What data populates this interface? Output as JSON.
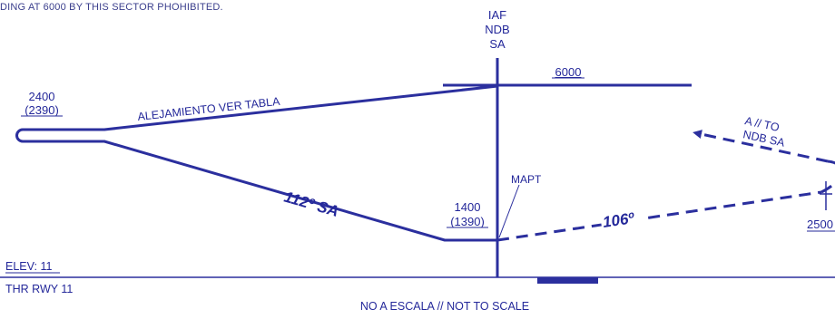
{
  "header": {
    "note": "DING AT 6000 BY THIS SECTOR PHOHIBITED."
  },
  "fix": {
    "line1": "IAF",
    "line2": "NDB",
    "line3": "SA"
  },
  "altitudes": {
    "fix_altitude": "6000",
    "holding_top": "2400",
    "holding_bottom": "(2390)",
    "mapt_top": "1400",
    "mapt_bottom": "(1390)",
    "right_edge": "2500"
  },
  "labels": {
    "outbound": "ALEJAMIENTO VER TABLA",
    "inbound_course": "112º SA",
    "missed_course": "106º",
    "mapt": "MAPT",
    "missed_to_line1": "A // TO",
    "missed_to_line2": "NDB SA"
  },
  "footer": {
    "elev": "ELEV: 11",
    "thr": "THR RWY 11",
    "scale_note": "NO A ESCALA // NOT TO SCALE"
  },
  "colors": {
    "chart_blue": "#24289a",
    "line_blue": "#2b2f9e"
  }
}
